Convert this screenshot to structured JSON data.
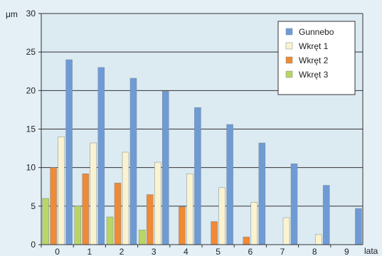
{
  "chart_data": {
    "type": "bar",
    "title": "",
    "y_unit_label": "μm",
    "x_unit_label": "lata",
    "categories": [
      "0",
      "1",
      "2",
      "3",
      "4",
      "5",
      "6",
      "7",
      "8",
      "9"
    ],
    "ylim": [
      0,
      30
    ],
    "y_ticks": [
      "0",
      "5",
      "10",
      "15",
      "20",
      "25",
      "30"
    ],
    "grid": true,
    "legend_position": "top-right",
    "series": [
      {
        "name": "Wkręt 3",
        "color": "#b9d664",
        "values": [
          6,
          5,
          3.6,
          1.9,
          null,
          null,
          null,
          null,
          null,
          null
        ]
      },
      {
        "name": "Wkręt 2",
        "color": "#f08a34",
        "values": [
          10,
          9.2,
          8,
          6.5,
          4.9,
          3,
          1,
          null,
          null,
          null
        ]
      },
      {
        "name": "Wkręt 1",
        "color": "#fbf3cf",
        "values": [
          14,
          13.2,
          12,
          10.7,
          9.2,
          7.4,
          5.5,
          3.5,
          1.3,
          null
        ]
      },
      {
        "name": "Gunnebo",
        "color": "#6f9bd5",
        "values": [
          24,
          23,
          21.6,
          19.9,
          17.8,
          15.6,
          13.2,
          10.5,
          7.7,
          4.7
        ]
      }
    ],
    "legend_order": [
      "Gunnebo",
      "Wkręt 1",
      "Wkręt 2",
      "Wkręt 3"
    ]
  }
}
